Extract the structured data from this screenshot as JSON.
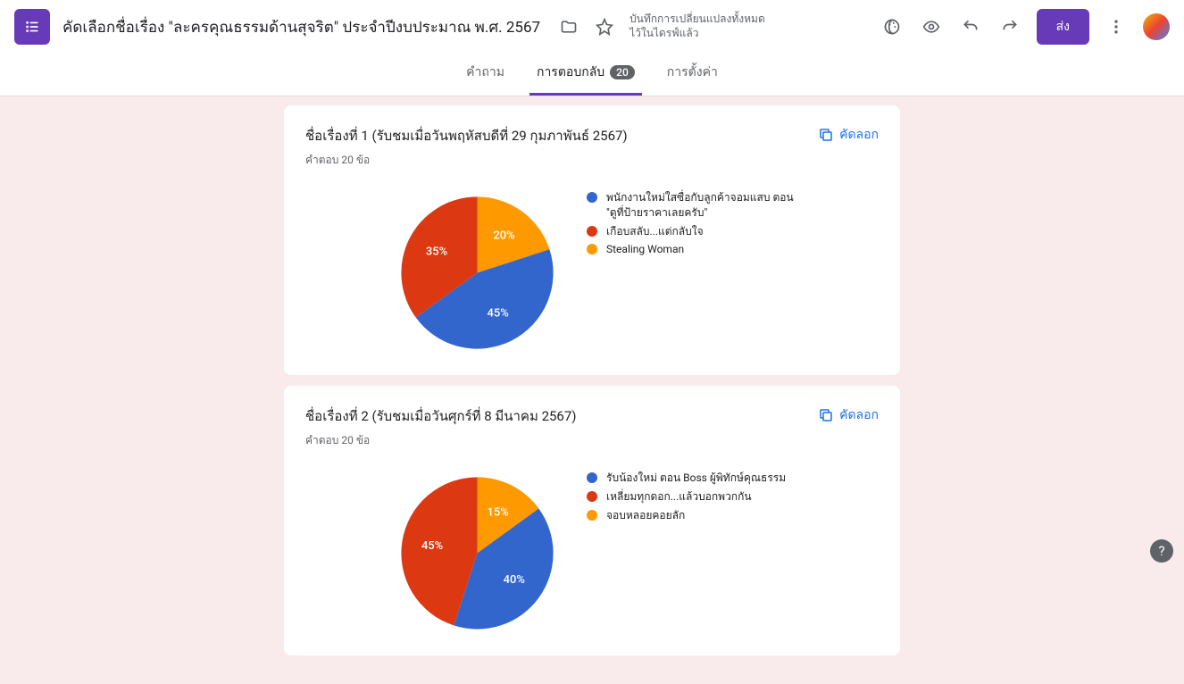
{
  "header": {
    "title": "คัดเลือกชื่อเรื่อง \"ละครคุณธรรมด้านสุจริต\" ประจำปีงบประมาณ พ.ศ. 2567",
    "save_status_line1": "บันทึกการเปลี่ยนแปลงทั้งหมด",
    "save_status_line2": "ไว้ในไดรฟ์แล้ว",
    "send_label": "ส่ง"
  },
  "tabs": {
    "questions": "คำถาม",
    "responses": "การตอบกลับ",
    "responses_count": "20",
    "settings": "การตั้งค่า"
  },
  "copy_label": "คัดลอก",
  "colors": {
    "blue": "#3366cc",
    "red": "#dc3912",
    "orange": "#ff9900",
    "label_white": "#ffffff"
  },
  "q1": {
    "title": "ชื่อเรื่องที่ 1 (รับชมเมื่อวันพฤหัสบดีที่ 29 กุมภาพันธ์ 2567)",
    "subtitle": "คำตอบ 20 ข้อ",
    "chart": {
      "type": "pie",
      "slices": [
        {
          "label": "พนักงานใหม่ใสซื่อกับลูกค้าจอมแสบ ตอน \"ดูที่ป้ายราคาเลยครับ\"",
          "value": 45,
          "pct_label": "45%",
          "color": "#3366cc"
        },
        {
          "label": "เกือบสลับ...แต่กลับใจ",
          "value": 35,
          "pct_label": "35%",
          "color": "#dc3912"
        },
        {
          "label": "Stealing Woman",
          "value": 20,
          "pct_label": "20%",
          "color": "#ff9900"
        }
      ]
    }
  },
  "q2": {
    "title": "ชื่อเรื่องที่ 2  (รับชมเมื่อวันศุกร์ที่ 8 มีนาคม 2567)",
    "subtitle": "คำตอบ 20 ข้อ",
    "chart": {
      "type": "pie",
      "slices": [
        {
          "label": "รับน้องใหม่ ตอน Boss ผู้พิทักษ์คุณธรรม",
          "value": 40,
          "pct_label": "40%",
          "color": "#3366cc"
        },
        {
          "label": "เหลี่ยมทุกดอก...แล้วบอกพวกกัน",
          "value": 45,
          "pct_label": "45%",
          "color": "#dc3912"
        },
        {
          "label": "จอบหลอยคอยลัก",
          "value": 15,
          "pct_label": "15%",
          "color": "#ff9900"
        }
      ]
    }
  }
}
